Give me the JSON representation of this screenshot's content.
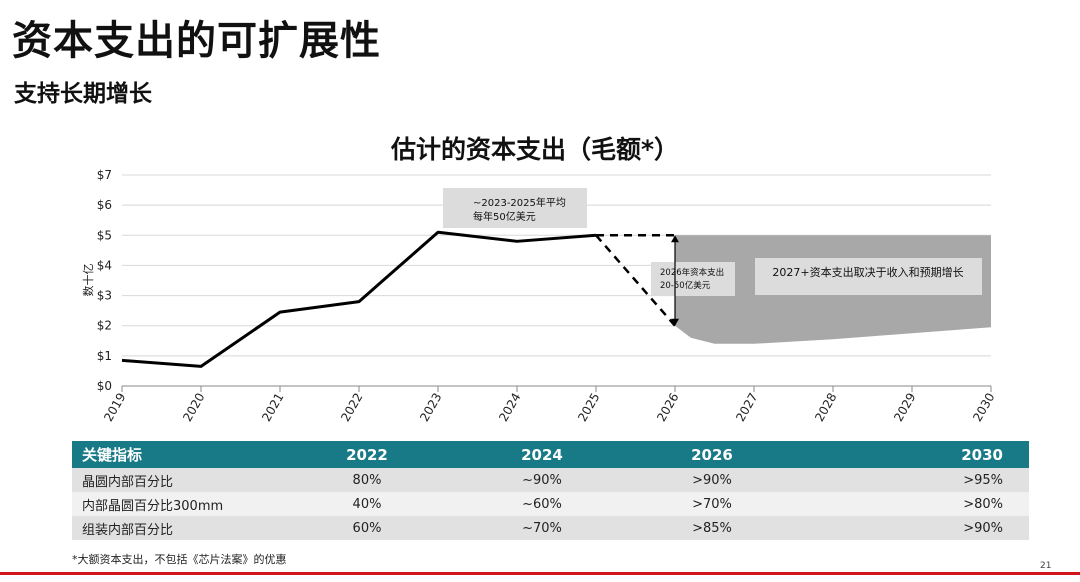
{
  "slide": {
    "title": "资本支出的可扩展性",
    "subtitle": "支持长期增长",
    "page_number": "21",
    "footnote": "*大额资本支出，不包括《芯片法案》的优惠",
    "accent_color": "#d0161c",
    "table_header_color": "#187a86"
  },
  "chart_data": {
    "type": "line",
    "title": "估计的资本支出（毛额*）",
    "ylabel": "数十亿",
    "xlabel": "",
    "x": [
      "2019",
      "2020",
      "2021",
      "2022",
      "2023",
      "2024",
      "2025",
      "2026",
      "2027",
      "2028",
      "2029",
      "2030"
    ],
    "y_ticks": [
      "$0",
      "$1",
      "$2",
      "$3",
      "$4",
      "$5",
      "$6",
      "$7"
    ],
    "ylim": [
      0,
      7
    ],
    "grid": true,
    "series": [
      {
        "name": "actual",
        "x": [
          2019,
          2020,
          2021,
          2022,
          2023,
          2024,
          2025
        ],
        "values": [
          0.85,
          0.65,
          2.45,
          2.8,
          5.1,
          4.8,
          5.0
        ],
        "color": "#000000"
      }
    ],
    "projection_2026": {
      "x_start": 2025,
      "x_end": 2026,
      "from": 5.0,
      "high": 5.0,
      "low": 2.0,
      "style": "dashed"
    },
    "range_band": {
      "x": [
        2026,
        2026.2,
        2026.5,
        2027,
        2028,
        2029,
        2030
      ],
      "upper": [
        5.0,
        5.0,
        5.0,
        5.0,
        5.0,
        5.0,
        5.0
      ],
      "lower": [
        2.0,
        1.6,
        1.4,
        1.4,
        1.55,
        1.75,
        1.95
      ],
      "color": "#a8a8a8"
    },
    "annotations": [
      {
        "id": "avg",
        "lines": [
          "~2023-2025年平均",
          "每年50亿美元"
        ]
      },
      {
        "id": "2026",
        "lines": [
          "2026年资本支出",
          "20-50亿美元"
        ]
      },
      {
        "id": "2027",
        "lines": [
          "2027+资本支出取决于收入和预期增长"
        ]
      }
    ]
  },
  "metrics_table": {
    "headers": [
      "关键指标",
      "2022",
      "2024",
      "2026",
      "2030"
    ],
    "rows": [
      [
        "晶圆内部百分比",
        "80%",
        "~90%",
        ">90%",
        ">95%"
      ],
      [
        "内部晶圆百分比300mm",
        "40%",
        "~60%",
        ">70%",
        ">80%"
      ],
      [
        "组装内部百分比",
        "60%",
        "~70%",
        ">85%",
        ">90%"
      ]
    ]
  }
}
